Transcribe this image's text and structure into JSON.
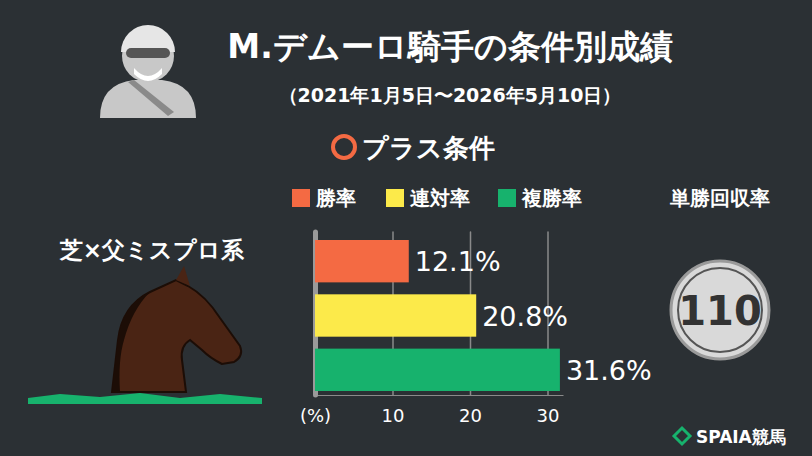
{
  "chart_data": {
    "type": "bar",
    "orientation": "horizontal",
    "title": "M.デムーロ騎手の条件別成績",
    "subtitle": "（2021年1月5日〜2026年5月10日）",
    "section": "プラス条件",
    "categories": [
      "芝×父ミスプロ系"
    ],
    "series": [
      {
        "name": "勝率",
        "color": "#f46a43",
        "values": [
          12.1
        ],
        "value_labels": [
          "12.1%"
        ]
      },
      {
        "name": "連対率",
        "color": "#fcea4a",
        "values": [
          20.8
        ],
        "value_labels": [
          "20.8%"
        ]
      },
      {
        "name": "複勝率",
        "color": "#17b26d",
        "values": [
          31.6
        ],
        "value_labels": [
          "31.6%"
        ]
      }
    ],
    "xlim": [
      0,
      32
    ],
    "xticks": [
      {
        "value": 0,
        "label": "(%)"
      },
      10,
      20,
      30
    ],
    "grid": true,
    "legend": "top",
    "data_labels": true,
    "recovery": {
      "label": "単勝回収率",
      "value": 110
    },
    "source": "SPAIA競馬"
  }
}
